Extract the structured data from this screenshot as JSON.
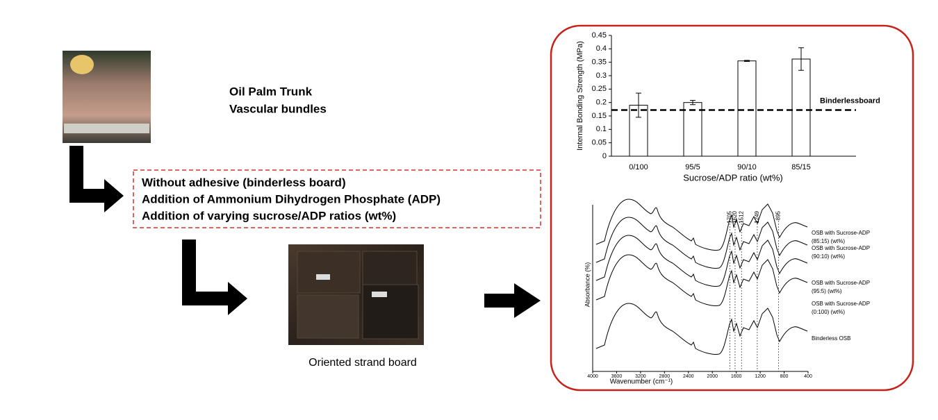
{
  "input": {
    "title_lines": [
      "Oil Palm Trunk",
      "Vascular bundles"
    ]
  },
  "treatments": [
    "Without adhesive (binderless board)",
    "Addition of Ammonium Dihydrogen Phosphate (ADP)",
    "Addition of varying sucrose/ADP ratios (wt%)"
  ],
  "product": {
    "caption": "Oriented strand board"
  },
  "bar_chart": {
    "type": "bar",
    "y_label": "Internal Bonding Strength (MPa)",
    "x_label": "Sucrose/ADP ratio (wt%)",
    "categories": [
      "0/100",
      "95/5",
      "90/10",
      "85/15"
    ],
    "values": [
      0.19,
      0.2,
      0.355,
      0.362
    ],
    "errors": [
      0.045,
      0.008,
      0.002,
      0.042
    ],
    "color": "#ffffff",
    "ylim": [
      0,
      0.45
    ],
    "yticks": [
      0,
      0.05,
      0.1,
      0.15,
      0.2,
      0.25,
      0.3,
      0.35,
      0.4,
      0.45
    ],
    "reference": {
      "label": "Binderlessboard",
      "value": 0.172
    }
  },
  "ftir": {
    "type": "line",
    "x_label": "Wavenumber (cm⁻¹)",
    "y_label": "Absorbance (%)",
    "xlim": [
      4000,
      400
    ],
    "xticks": [
      4000,
      3600,
      3200,
      2800,
      2400,
      2000,
      1600,
      1200,
      800,
      400
    ],
    "peaks": [
      1705,
      1620,
      1512,
      1249,
      895
    ],
    "series_labels": [
      [
        "OSB with Sucrose-ADP",
        "(85:15) (wt%)"
      ],
      [
        "OSB with Sucrose-ADP",
        "(90:10) (wt%)"
      ],
      [
        "OSB with Sucrose-ADP",
        "(95:5) (wt%)"
      ],
      [
        "OSB with Sucrose-ADP",
        "(0:100) (wt%)"
      ],
      [
        "Binderless OSB"
      ]
    ]
  }
}
